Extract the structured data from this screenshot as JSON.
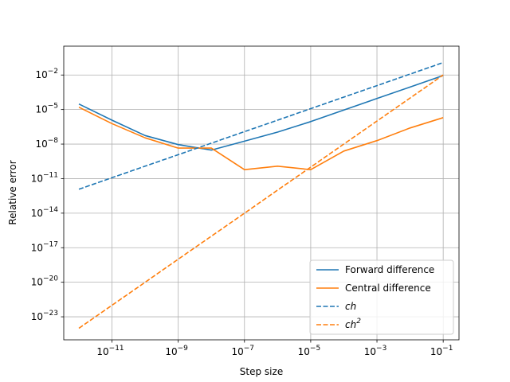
{
  "chart_data": {
    "type": "line",
    "xlabel": "Step size",
    "ylabel": "Relative error",
    "xscale": "log",
    "yscale": "log",
    "xlim": [
      3.5e-13,
      0.3
    ],
    "ylim": [
      1e-25,
      3.2
    ],
    "grid": true,
    "legend_position": "lower right",
    "x_ticks": [
      {
        "exp": -11,
        "value": 1e-11
      },
      {
        "exp": -9,
        "value": 1e-09
      },
      {
        "exp": -7,
        "value": 1e-07
      },
      {
        "exp": -5,
        "value": 1e-05
      },
      {
        "exp": -3,
        "value": 0.001
      },
      {
        "exp": -1,
        "value": 0.1
      }
    ],
    "y_ticks": [
      {
        "exp": -23,
        "value": 1e-23
      },
      {
        "exp": -20,
        "value": 1e-20
      },
      {
        "exp": -17,
        "value": 1e-17
      },
      {
        "exp": -14,
        "value": 1e-14
      },
      {
        "exp": -11,
        "value": 1e-11
      },
      {
        "exp": -8,
        "value": 1e-08
      },
      {
        "exp": -5,
        "value": 1e-05
      },
      {
        "exp": -2,
        "value": 0.01
      }
    ],
    "x": [
      1e-12,
      1e-11,
      1e-10,
      1e-09,
      1e-08,
      1e-07,
      1e-06,
      1e-05,
      0.0001,
      0.001,
      0.01,
      0.1
    ],
    "series": [
      {
        "name": "Forward difference",
        "color": "#1f77b4",
        "dash": "solid",
        "values": [
          3e-05,
          1.2e-06,
          5.5e-08,
          9e-09,
          3e-09,
          1.8e-08,
          1.1e-07,
          9e-07,
          9e-06,
          9e-05,
          0.0009,
          0.009
        ]
      },
      {
        "name": "Central difference",
        "color": "#ff7f0e",
        "dash": "solid",
        "values": [
          1.6e-05,
          6e-07,
          3.5e-08,
          4.5e-09,
          4.5e-09,
          6e-11,
          1.2e-10,
          6e-11,
          2.5e-09,
          2e-08,
          2.5e-07,
          2e-06
        ]
      },
      {
        "name": "ch",
        "color": "#1f77b4",
        "dash": "dashed",
        "values": [
          1.2e-12,
          1.2e-11,
          1.2e-10,
          1.2e-09,
          1.2e-08,
          1.2e-07,
          1.2e-06,
          1.2e-05,
          0.00012,
          0.0012,
          0.012,
          0.12
        ]
      },
      {
        "name": "ch2",
        "color": "#ff7f0e",
        "dash": "dashed",
        "values": [
          1e-24,
          1e-22,
          1e-20,
          1e-18,
          1e-16,
          1e-14,
          1e-12,
          1e-10,
          1e-08,
          1e-06,
          0.0001,
          0.01
        ]
      }
    ],
    "legend": [
      {
        "label": "Forward difference",
        "color": "#1f77b4",
        "dash": "solid",
        "italic": false,
        "superscript": ""
      },
      {
        "label": "Central difference",
        "color": "#ff7f0e",
        "dash": "solid",
        "italic": false,
        "superscript": ""
      },
      {
        "label": "ch",
        "color": "#1f77b4",
        "dash": "dashed",
        "italic": true,
        "superscript": ""
      },
      {
        "label": "ch",
        "color": "#ff7f0e",
        "dash": "dashed",
        "italic": true,
        "superscript": "2"
      }
    ]
  }
}
